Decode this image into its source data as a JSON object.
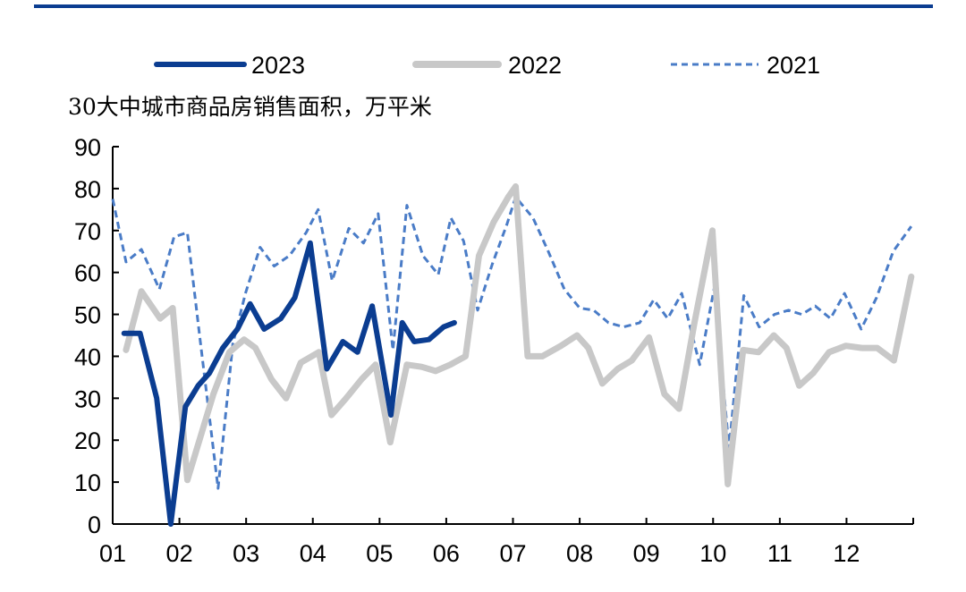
{
  "chart_data": {
    "type": "line",
    "title": "",
    "subtitle": "30大中城市商品房销售面积，万平米",
    "xlabel": "",
    "ylabel": "",
    "ylim": [
      0,
      90
    ],
    "y_ticks": [
      "0",
      "10",
      "20",
      "30",
      "40",
      "50",
      "60",
      "70",
      "80",
      "90"
    ],
    "xlim": [
      1,
      13
    ],
    "x_ticks": [
      {
        "label": "01",
        "pos": 1
      },
      {
        "label": "02",
        "pos": 2
      },
      {
        "label": "03",
        "pos": 3
      },
      {
        "label": "04",
        "pos": 4
      },
      {
        "label": "05",
        "pos": 5
      },
      {
        "label": "06",
        "pos": 6
      },
      {
        "label": "07",
        "pos": 7
      },
      {
        "label": "08",
        "pos": 8
      },
      {
        "label": "09",
        "pos": 9
      },
      {
        "label": "10",
        "pos": 10
      },
      {
        "label": "11",
        "pos": 11
      },
      {
        "label": "12",
        "pos": 12
      }
    ],
    "grid": false,
    "legend_position": "top",
    "series": [
      {
        "name": "2023",
        "color": "#0b3d91",
        "style": "solid",
        "x": [
          1.17,
          1.41,
          1.66,
          1.87,
          2.09,
          2.28,
          2.45,
          2.65,
          2.87,
          3.06,
          3.27,
          3.52,
          3.73,
          3.96,
          4.21,
          4.45,
          4.67,
          4.89,
          5.17,
          5.34,
          5.52,
          5.74,
          5.96,
          6.12
        ],
        "y": [
          45.5,
          45.5,
          30,
          0,
          28,
          33,
          36,
          42,
          46.5,
          52.5,
          46.5,
          49,
          54,
          67,
          37,
          43.5,
          41,
          52,
          26,
          48,
          43.5,
          44,
          47,
          48
        ]
      },
      {
        "name": "2022",
        "color": "#c8c8c8",
        "style": "solid",
        "x": [
          1.2,
          1.43,
          1.71,
          1.9,
          2.12,
          2.32,
          2.51,
          2.75,
          2.97,
          3.14,
          3.38,
          3.6,
          3.82,
          4.09,
          4.28,
          4.5,
          4.73,
          4.94,
          5.16,
          5.41,
          5.63,
          5.84,
          6.06,
          6.29,
          6.49,
          6.71,
          6.93,
          7.04,
          7.22,
          7.44,
          7.72,
          7.96,
          8.13,
          8.34,
          8.57,
          8.78,
          9.04,
          9.27,
          9.49,
          9.72,
          9.99,
          10.22,
          10.45,
          10.68,
          10.91,
          11.1,
          11.29,
          11.5,
          11.74,
          11.99,
          12.23,
          12.46,
          12.71,
          12.97
        ],
        "y": [
          41.5,
          55.5,
          49,
          51.5,
          10.5,
          21,
          31,
          41,
          44,
          42,
          34.5,
          30,
          38.5,
          41,
          26,
          30,
          34.5,
          38,
          19.5,
          38,
          37.5,
          36.5,
          38,
          40,
          64,
          72,
          78,
          80.5,
          40,
          40,
          42.5,
          45,
          42,
          33.5,
          37,
          39,
          44.5,
          31,
          27.5,
          48,
          70,
          9.5,
          41.5,
          41,
          45,
          42,
          33,
          36,
          41,
          42.5,
          42,
          42,
          39,
          59
        ]
      },
      {
        "name": "2021",
        "color": "#4a7cc7",
        "style": "dashed",
        "x": [
          1.0,
          1.2,
          1.43,
          1.7,
          1.92,
          2.12,
          2.31,
          2.58,
          2.8,
          2.99,
          3.21,
          3.42,
          3.65,
          3.9,
          4.08,
          4.29,
          4.54,
          4.76,
          4.98,
          5.2,
          5.41,
          5.65,
          5.88,
          6.07,
          6.26,
          6.47,
          6.69,
          6.91,
          7.04,
          7.3,
          7.53,
          7.77,
          8.0,
          8.21,
          8.43,
          8.66,
          8.9,
          9.11,
          9.32,
          9.53,
          9.8,
          10.02,
          10.24,
          10.46,
          10.69,
          10.92,
          11.13,
          11.33,
          11.53,
          11.76,
          11.97,
          12.22,
          12.45,
          12.7,
          12.97
        ],
        "y": [
          77.5,
          62.5,
          65.5,
          56,
          68.5,
          69.5,
          44,
          8.5,
          43,
          55,
          66,
          61.5,
          64,
          69.5,
          75,
          58,
          70.5,
          67,
          74,
          41.5,
          76,
          64,
          59.5,
          73,
          67.5,
          51,
          62,
          71.5,
          78,
          73,
          65,
          56,
          51.5,
          51,
          48,
          47,
          48,
          53.5,
          49,
          55,
          38,
          56.5,
          18,
          54.5,
          47,
          50,
          51,
          50,
          52,
          49,
          55,
          46.5,
          54,
          65,
          71
        ]
      }
    ]
  }
}
